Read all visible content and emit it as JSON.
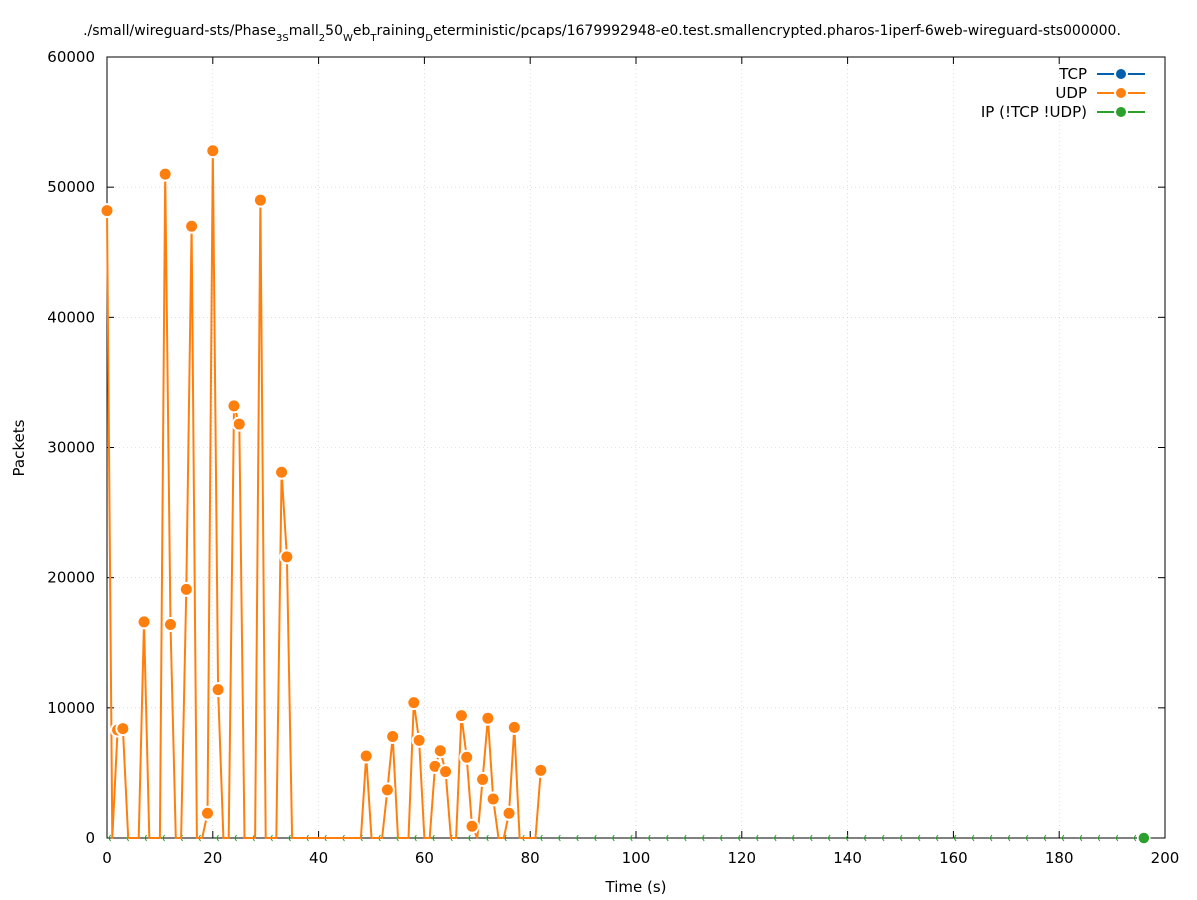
{
  "chart_data": {
    "type": "line",
    "title_parts": [
      {
        "text": "./small/wireguard-sts/Phase",
        "sub": false
      },
      {
        "text": "3",
        "sub": true
      },
      {
        "text": "S",
        "sub": true
      },
      {
        "text": "mall",
        "sub": false
      },
      {
        "text": "2",
        "sub": true
      },
      {
        "text": "50",
        "sub": false
      },
      {
        "text": "W",
        "sub": true
      },
      {
        "text": "eb",
        "sub": false
      },
      {
        "text": "T",
        "sub": true
      },
      {
        "text": "raining",
        "sub": false
      },
      {
        "text": "D",
        "sub": true
      },
      {
        "text": "eterministic/pcaps/1679992948-e0.test.smallencrypted.pharos-1iperf-6web-wireguard-sts000000.",
        "sub": false
      }
    ],
    "xlabel": "Time (s)",
    "ylabel": "Packets",
    "xlim": [
      0,
      200
    ],
    "ylim": [
      0,
      60000
    ],
    "xticks": [
      0,
      20,
      40,
      60,
      80,
      100,
      120,
      140,
      160,
      180,
      200
    ],
    "yticks": [
      0,
      10000,
      20000,
      30000,
      40000,
      50000,
      60000
    ],
    "grid": true,
    "legend_position": "top-right",
    "series": [
      {
        "name": "TCP",
        "color": "#0060ad",
        "x": [
          0,
          196
        ],
        "y": [
          0,
          0
        ]
      },
      {
        "name": "UDP",
        "color": "#ff7f0e",
        "x": [
          0,
          1,
          2,
          3,
          4,
          5,
          6,
          7,
          8,
          9,
          10,
          11,
          12,
          13,
          14,
          15,
          16,
          17,
          18,
          19,
          20,
          21,
          22,
          23,
          24,
          25,
          26,
          27,
          28,
          29,
          30,
          31,
          32,
          33,
          34,
          35,
          36,
          37,
          38,
          39,
          40,
          41,
          42,
          43,
          44,
          45,
          46,
          47,
          48,
          49,
          50,
          51,
          52,
          53,
          54,
          55,
          56,
          57,
          58,
          59,
          60,
          61,
          62,
          63,
          64,
          65,
          66,
          67,
          68,
          69,
          70,
          71,
          72,
          73,
          74,
          75,
          76,
          77,
          78,
          79,
          80,
          81,
          82
        ],
        "y": [
          48200,
          0,
          8300,
          8400,
          0,
          0,
          0,
          16600,
          0,
          0,
          0,
          51000,
          16400,
          0,
          0,
          19100,
          47000,
          0,
          0,
          1900,
          52800,
          11400,
          0,
          0,
          33200,
          31800,
          0,
          0,
          0,
          49000,
          0,
          0,
          0,
          28100,
          21600,
          0,
          0,
          0,
          0,
          0,
          0,
          0,
          0,
          0,
          0,
          0,
          0,
          0,
          0,
          6300,
          0,
          0,
          0,
          3700,
          7800,
          0,
          0,
          0,
          10400,
          7500,
          0,
          0,
          5500,
          6700,
          5100,
          0,
          0,
          9400,
          6200,
          900,
          0,
          4500,
          9200,
          3000,
          0,
          0,
          1900,
          8500,
          0,
          0,
          0,
          0,
          5200
        ]
      },
      {
        "name": "IP (!TCP  !UDP)",
        "color": "#2ca02c",
        "x": [
          196
        ],
        "y": [
          0
        ]
      }
    ]
  }
}
